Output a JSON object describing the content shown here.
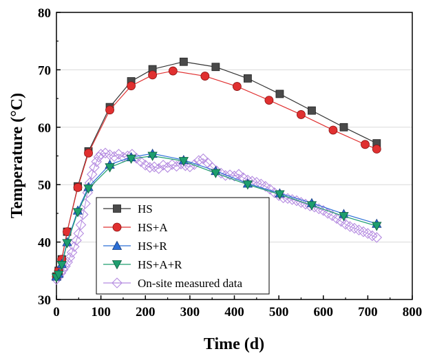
{
  "chart_data": {
    "type": "line",
    "xlabel": "Time (d)",
    "ylabel": "Temperature (°C)",
    "xlim": [
      0,
      800
    ],
    "ylim": [
      30,
      80
    ],
    "xticks": [
      0,
      100,
      200,
      300,
      400,
      500,
      600,
      700,
      800
    ],
    "yticks": [
      30,
      40,
      50,
      60,
      70,
      80
    ],
    "x_tick_labels": [
      "0",
      "100",
      "200",
      "300",
      "400",
      "500",
      "600",
      "700",
      "800"
    ],
    "y_tick_labels": [
      "30",
      "40",
      "50",
      "60",
      "70",
      "80"
    ],
    "grid": "horizontal",
    "legend_position": "bottom-left",
    "series": [
      {
        "name": "HS",
        "color": "#333333",
        "marker": "square",
        "x": [
          0,
          5,
          12,
          24,
          48,
          72,
          120,
          168,
          216,
          286,
          358,
          430,
          502,
          574,
          646,
          720
        ],
        "y": [
          34.0,
          35.0,
          37.0,
          41.8,
          49.7,
          55.8,
          63.5,
          68.0,
          70.1,
          71.4,
          70.5,
          68.5,
          65.8,
          62.9,
          60.0,
          57.2
        ]
      },
      {
        "name": "HS+A",
        "color": "#e03030",
        "marker": "circle",
        "x": [
          0,
          5,
          12,
          24,
          48,
          72,
          120,
          168,
          216,
          262,
          334,
          406,
          478,
          550,
          622,
          694,
          720
        ],
        "y": [
          34.0,
          35.0,
          37.0,
          41.8,
          49.5,
          55.5,
          63.0,
          67.2,
          69.1,
          69.8,
          68.9,
          67.1,
          64.7,
          62.2,
          59.5,
          57.0,
          56.2
        ]
      },
      {
        "name": "HS+R",
        "color": "#2b6fd6",
        "marker": "triangle-up",
        "x": [
          0,
          5,
          12,
          24,
          48,
          72,
          120,
          168,
          216,
          286,
          358,
          430,
          502,
          574,
          646,
          720
        ],
        "y": [
          34.0,
          34.5,
          36.2,
          40.0,
          45.5,
          49.6,
          53.5,
          54.8,
          55.4,
          54.3,
          52.4,
          50.2,
          48.5,
          46.8,
          44.9,
          43.2
        ]
      },
      {
        "name": "HS+A+R",
        "color": "#1e9e6e",
        "marker": "triangle-down",
        "x": [
          0,
          5,
          12,
          24,
          48,
          72,
          120,
          168,
          216,
          286,
          358,
          430,
          502,
          574,
          646,
          720
        ],
        "y": [
          33.8,
          34.3,
          36.0,
          39.8,
          45.2,
          49.3,
          53.0,
          54.5,
          55.0,
          54.1,
          52.0,
          50.0,
          48.3,
          46.4,
          44.5,
          42.8
        ]
      },
      {
        "name": "On-site measured data",
        "color": "#b48ae0",
        "marker": "diamond-open",
        "x": [
          0,
          5,
          10,
          15,
          20,
          25,
          30,
          35,
          40,
          45,
          50,
          55,
          60,
          65,
          70,
          75,
          80,
          85,
          90,
          95,
          100,
          110,
          120,
          130,
          140,
          150,
          160,
          170,
          180,
          190,
          200,
          210,
          220,
          230,
          240,
          250,
          260,
          270,
          280,
          290,
          300,
          310,
          320,
          330,
          340,
          350,
          360,
          370,
          380,
          390,
          400,
          410,
          420,
          430,
          440,
          450,
          460,
          470,
          480,
          490,
          500,
          510,
          520,
          530,
          540,
          550,
          560,
          570,
          580,
          590,
          600,
          610,
          620,
          630,
          640,
          650,
          660,
          670,
          680,
          690,
          700,
          710,
          720
        ],
        "y": [
          33.5,
          34.0,
          34.6,
          35.2,
          35.8,
          36.5,
          37.3,
          38.2,
          39.2,
          40.3,
          41.5,
          43.0,
          44.8,
          46.7,
          48.6,
          50.3,
          51.8,
          53.0,
          54.0,
          54.8,
          55.3,
          55.5,
          55.2,
          54.9,
          55.3,
          54.8,
          55.0,
          55.3,
          54.6,
          54.0,
          53.4,
          53.0,
          53.1,
          52.8,
          53.4,
          53.0,
          53.5,
          53.2,
          53.6,
          53.3,
          53.1,
          53.5,
          54.2,
          54.5,
          53.8,
          53.0,
          52.4,
          52.0,
          51.6,
          51.7,
          51.5,
          51.8,
          51.2,
          50.8,
          50.6,
          50.4,
          50.1,
          49.7,
          49.2,
          48.6,
          48.1,
          47.7,
          47.6,
          47.4,
          47.2,
          46.9,
          46.6,
          46.3,
          46.1,
          45.8,
          45.5,
          45.0,
          44.6,
          44.1,
          43.6,
          43.1,
          42.7,
          42.4,
          42.1,
          41.8,
          41.5,
          41.1,
          40.8
        ]
      }
    ]
  }
}
